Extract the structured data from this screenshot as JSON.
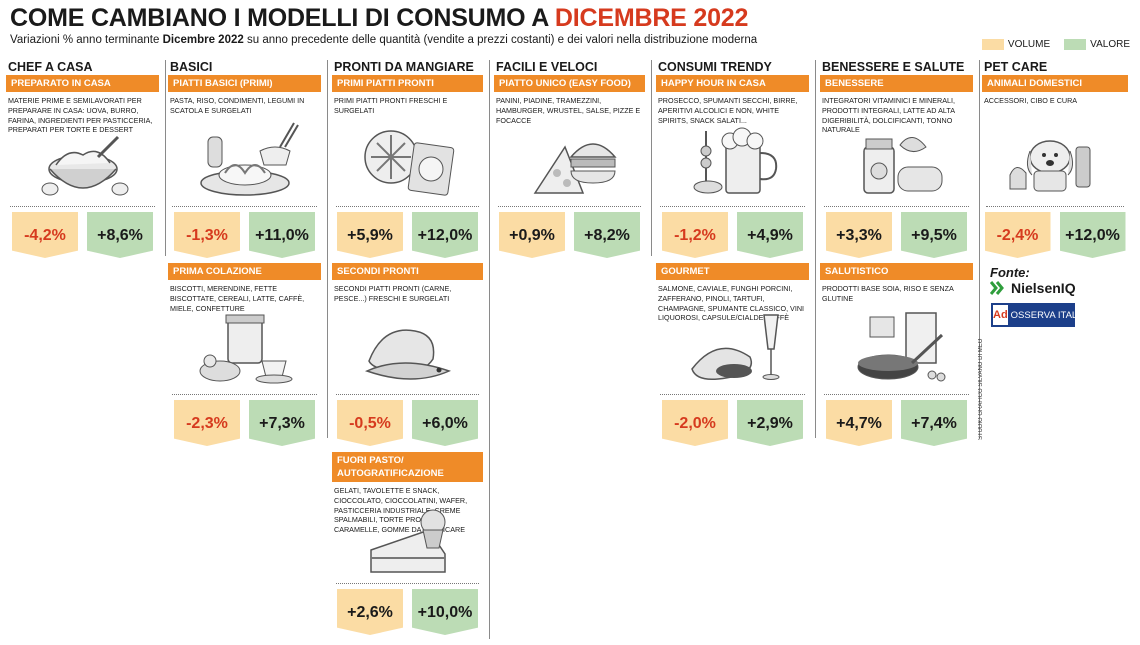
{
  "title": {
    "main": "COME CAMBIANO I MODELLI DI CONSUMO A ",
    "highlight": "DICEMBRE 2022"
  },
  "subtitle": {
    "pre": "Variazioni % anno terminante ",
    "bold": "Dicembre 2022",
    "post": " su anno precedente delle quantità (vendite a prezzi costanti) e dei valori nella distribuzione moderna"
  },
  "legend": {
    "volume": "VOLUME",
    "valore": "VALORE",
    "volume_color": "#fbdca4",
    "valore_color": "#bcdcb5"
  },
  "columns": [
    {
      "title": "CHEF A CASA",
      "sections": [
        {
          "head": "PREPARATO IN CASA",
          "desc": "MATERIE PRIME E SEMILAVORATI PER PREPARARE IN CASA: UOVA, BURRO, FARINA, INGREDIENTI PER PASTICCERIA, PREPARATI PER TORTE E DESSERT",
          "volume": "-4,2%",
          "valore": "+8,6%",
          "icon": "flour-bowl-icon"
        }
      ]
    },
    {
      "title": "BASICI",
      "sections": [
        {
          "head": "PIATTI BASICI (PRIMI)",
          "desc": "PASTA, RISO, CONDIMENTI, LEGUMI IN SCATOLA E SURGELATI",
          "volume": "-1,3%",
          "valore": "+11,0%",
          "icon": "pasta-plate-icon"
        },
        {
          "head": "PRIMA COLAZIONE",
          "desc": "BISCOTTI, MERENDINE, FETTE BISCOTTATE, CEREALI, LATTE, CAFFÈ, MIELE, CONFETTURE",
          "volume": "-2,3%",
          "valore": "+7,3%",
          "icon": "breakfast-icon"
        }
      ]
    },
    {
      "title": "PRONTI DA MANGIARE",
      "sections": [
        {
          "head": "PRIMI PIATTI PRONTI",
          "desc": "PRIMI PIATTI PRONTI FRESCHI E SURGELATI",
          "volume": "+5,9%",
          "valore": "+12,0%",
          "icon": "frozen-food-icon"
        },
        {
          "head": "SECONDI PRONTI",
          "desc": "SECONDI PIATTI PRONTI (CARNE, PESCE...) FRESCHI  E SURGELATI",
          "volume": "-0,5%",
          "valore": "+6,0%",
          "icon": "meat-fish-icon"
        },
        {
          "head": "FUORI PASTO/ AUTOGRATIFICAZIONE",
          "desc": "GELATI, TAVOLETTE E SNACK, CIOCCOLATO, CIOCCOLATINI, WAFER, PASTICCERIA INDUSTRIALE, CREME SPALMABILI, TORTE PRONTE, CARAMELLE, GOMME DA MASTICARE",
          "volume": "+2,6%",
          "valore": "+10,0%",
          "icon": "cake-icon"
        }
      ]
    },
    {
      "title": "FACILI E VELOCI",
      "sections": [
        {
          "head": "PIATTO UNICO (EASY FOOD)",
          "desc": "PANINI, PIADINE, TRAMEZZINI, HAMBURGER, WRUSTEL, SALSE, PIZZE E FOCACCE",
          "volume": "+0,9%",
          "valore": "+8,2%",
          "icon": "pizza-burger-icon"
        }
      ]
    },
    {
      "title": "CONSUMI TRENDY",
      "sections": [
        {
          "head": "HAPPY HOUR IN CASA",
          "desc": "PROSECCO, SPUMANTI SECCHI, BIRRE, APERITIVI ALCOLICI E NON, WHITE SPIRITS, SNACK SALATI...",
          "volume": "-1,2%",
          "valore": "+4,9%",
          "icon": "beer-mug-icon"
        },
        {
          "head": "GOURMET",
          "desc": "SALMONE, CAVIALE, FUNGHI PORCINI, ZAFFERANO, PINOLI, TARTUFI, CHAMPAGNE, SPUMANTE CLASSICO, VINI LIQUOROSI, CAPSULE/CIALDE CAFFÈ",
          "volume": "-2,0%",
          "valore": "+2,9%",
          "icon": "caviar-champagne-icon"
        }
      ]
    },
    {
      "title": "BENESSERE E SALUTE",
      "sections": [
        {
          "head": "BENESSERE",
          "desc": "INTEGRATORI VITAMINICI E MINERALI, PRODOTTI INTEGRALI, LATTE AD ALTA DIGERIBILITÀ, DOLCIFICANTI, TONNO NATURALE",
          "volume": "+3,3%",
          "valore": "+9,5%",
          "icon": "supplements-icon"
        },
        {
          "head": "SALUTISTICO",
          "desc": "PRODOTTI BASE SOIA, RISO E SENZA GLUTINE",
          "volume": "+4,7%",
          "valore": "+7,4%",
          "icon": "soy-rice-icon"
        }
      ]
    },
    {
      "title": "PET CARE",
      "sections": [
        {
          "head": "ANIMALI DOMESTICI",
          "desc": "ACCESSORI, CIBO E CURA",
          "volume": "-2,4%",
          "valore": "+12,0%",
          "icon": "pet-icon"
        }
      ]
    }
  ],
  "fonte": {
    "label": "Fonte:",
    "nielsen": "NielsenIQ",
    "osserva": "OSSERVA ITALIA",
    "osserva_mark": "Ad"
  },
  "credit": "STUDIO GRAFICO SILVANO DI MEO"
}
